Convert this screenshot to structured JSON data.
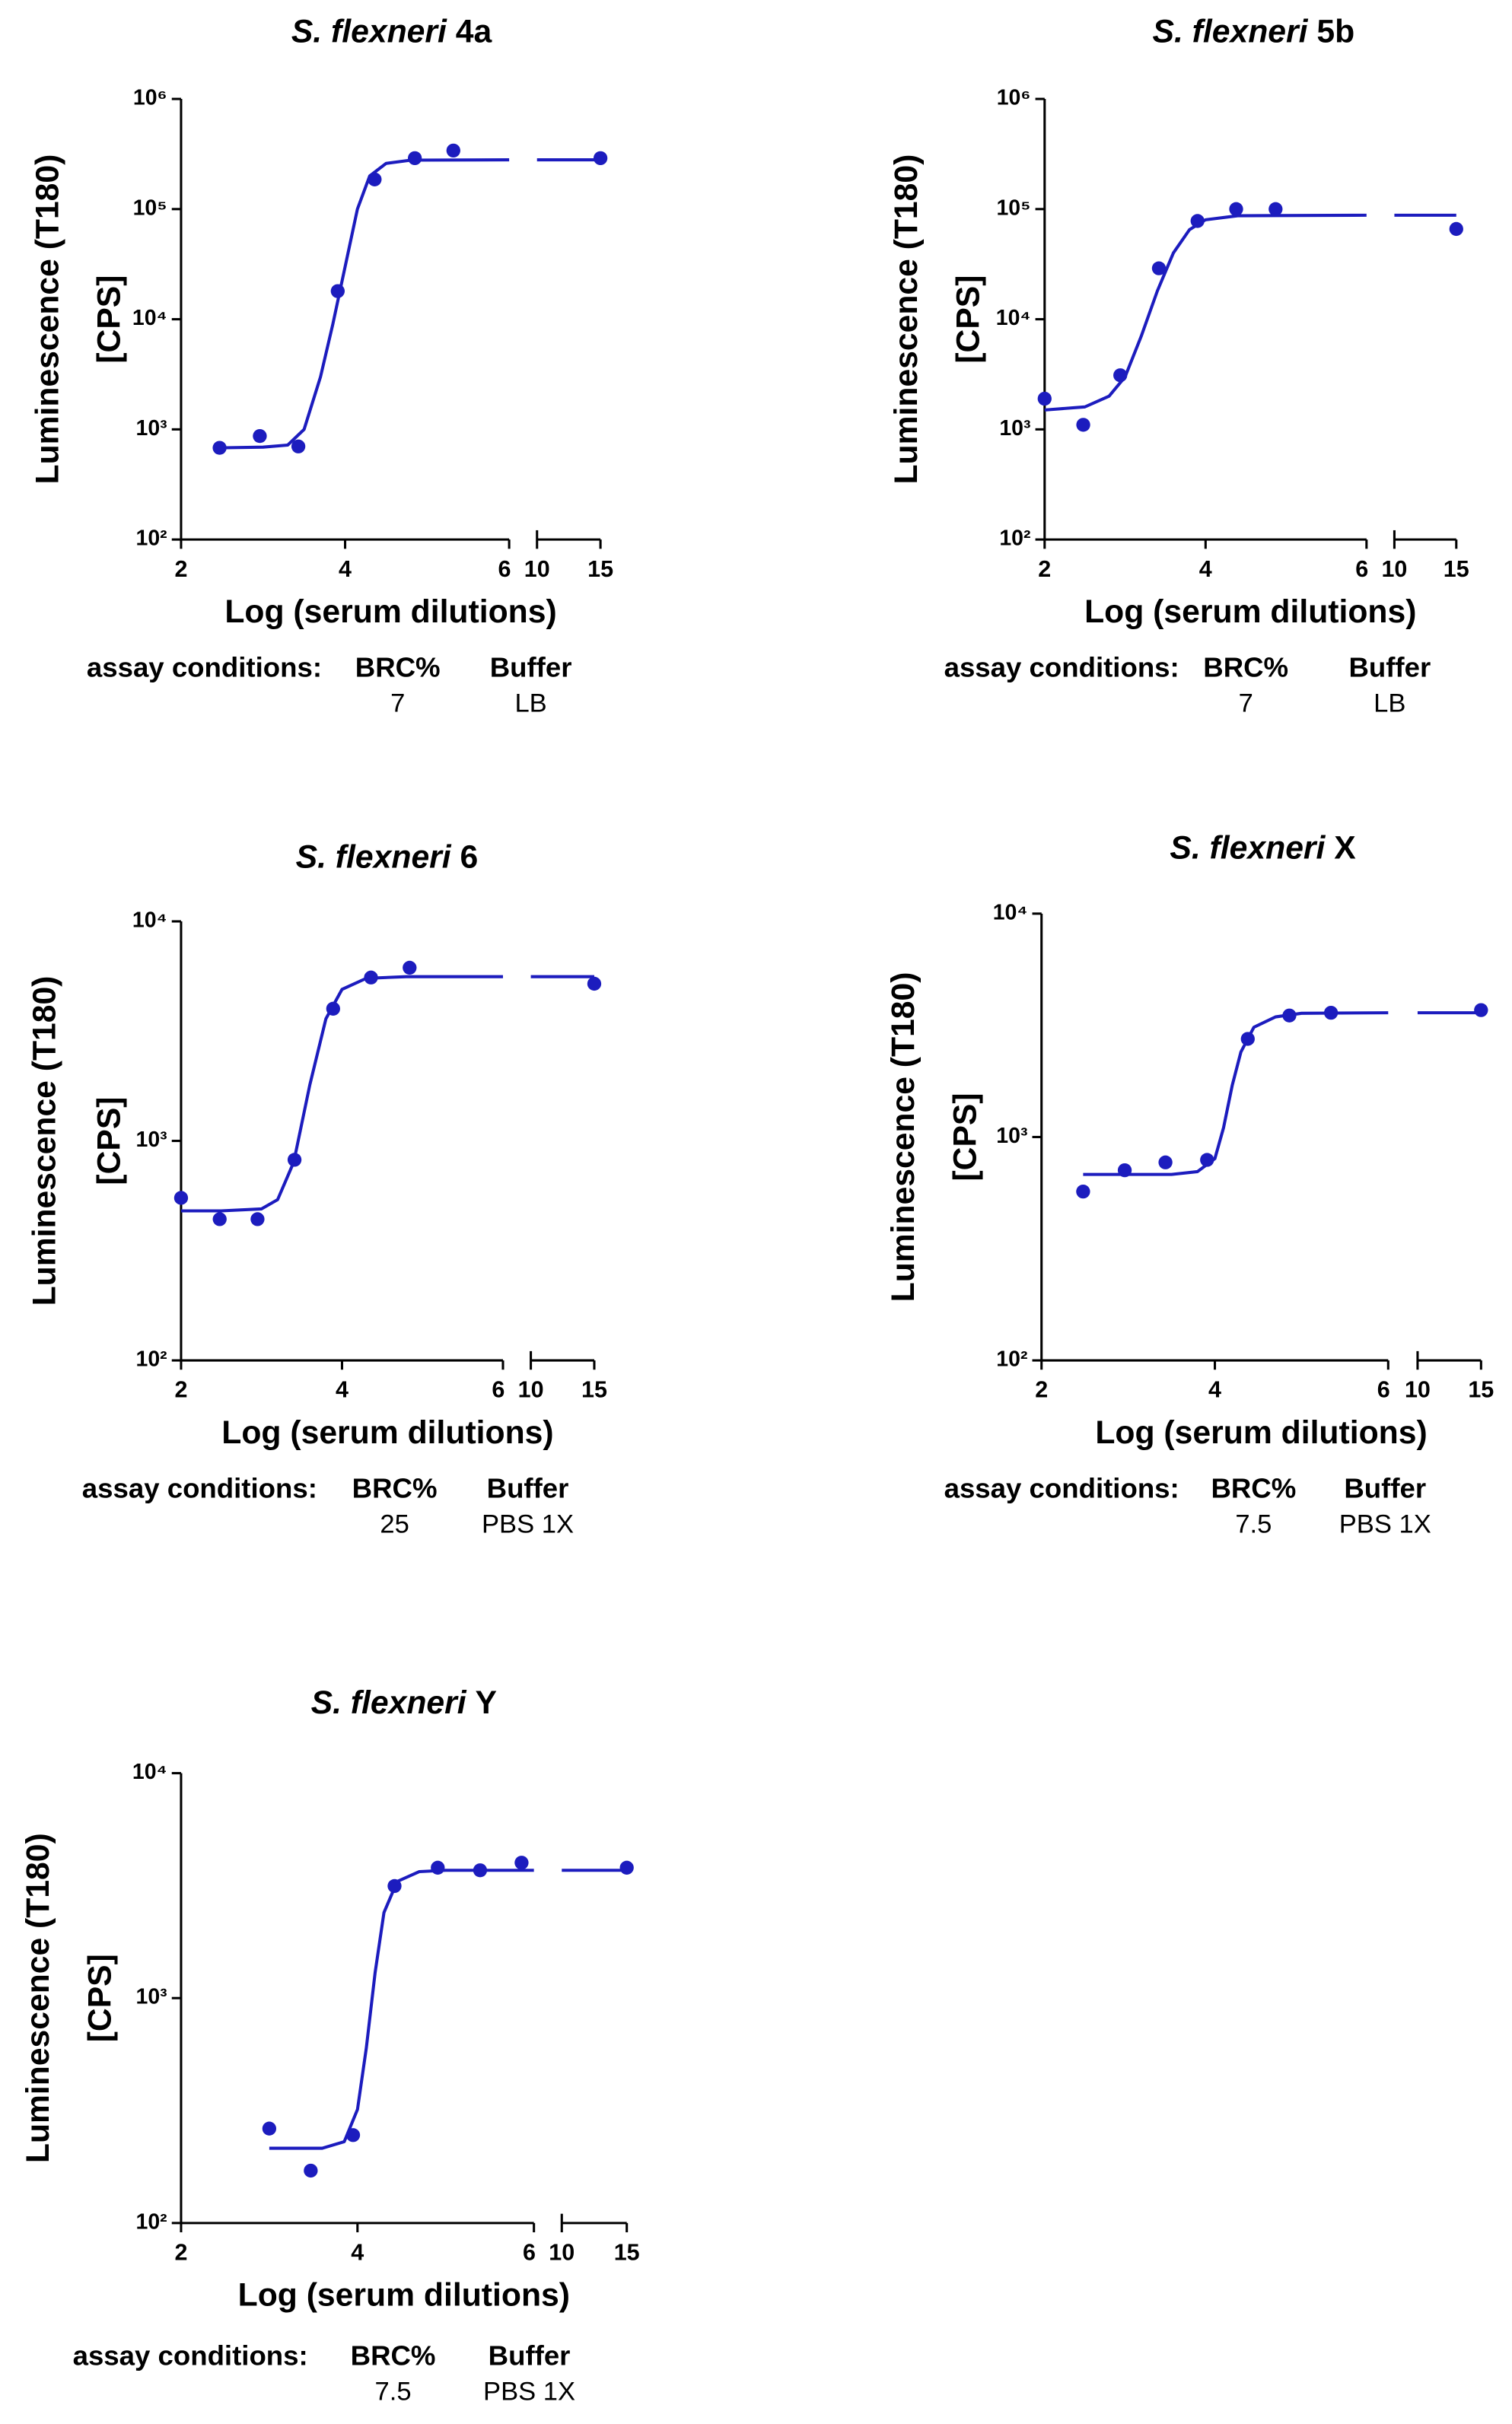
{
  "chart_data": [
    {
      "type": "scatter",
      "organism": "S. flexneri",
      "strain": "4a",
      "ylabel": [
        "Luminescence (T180)",
        "[CPS]"
      ],
      "xlabel": "Log (serum dilutions)",
      "yscale": "log",
      "ylim": [
        100,
        1000000
      ],
      "yticks": [
        {
          "value": 100,
          "label": "10²"
        },
        {
          "value": 1000,
          "label": "10³"
        },
        {
          "value": 10000,
          "label": "10⁴"
        },
        {
          "value": 100000,
          "label": "10⁵"
        },
        {
          "value": 1000000,
          "label": "10⁶"
        }
      ],
      "xsegments": [
        {
          "xlim": [
            2,
            6
          ],
          "xticks": [
            2,
            4,
            6
          ]
        },
        {
          "xlim": [
            10,
            15
          ],
          "xticks": [
            10,
            15
          ]
        }
      ],
      "series": [
        {
          "color": "#1c1cbe",
          "x": [
            2.47,
            2.96,
            3.43,
            3.91,
            4.36,
            4.85,
            5.32,
            15
          ],
          "values": [
            680,
            870,
            700,
            18000,
            186000,
            290000,
            340000,
            290000
          ]
        }
      ],
      "fit": {
        "color": "#1c1cbe",
        "x": [
          2.47,
          3.0,
          3.3,
          3.5,
          3.7,
          3.85,
          4.0,
          4.15,
          4.3,
          4.5,
          4.8,
          6,
          10,
          15
        ],
        "values": [
          680,
          690,
          720,
          1000,
          3000,
          9000,
          30000,
          100000,
          200000,
          260000,
          278000,
          280000,
          280000,
          280000
        ]
      },
      "conditions": {
        "label": "assay conditions:",
        "columns": [
          {
            "name": "BRC%",
            "value": "7"
          },
          {
            "name": "Buffer",
            "value": "LB"
          }
        ]
      }
    },
    {
      "type": "scatter",
      "organism": "S. flexneri",
      "strain": "5b",
      "ylabel": [
        "Luminescence (T180)",
        "[CPS]"
      ],
      "xlabel": "Log (serum dilutions)",
      "yscale": "log",
      "ylim": [
        100,
        1000000
      ],
      "yticks": [
        {
          "value": 100,
          "label": "10²"
        },
        {
          "value": 1000,
          "label": "10³"
        },
        {
          "value": 10000,
          "label": "10⁴"
        },
        {
          "value": 100000,
          "label": "10⁵"
        },
        {
          "value": 1000000,
          "label": "10⁶"
        }
      ],
      "xsegments": [
        {
          "xlim": [
            2,
            6
          ],
          "xticks": [
            2,
            4,
            6
          ]
        },
        {
          "xlim": [
            10,
            15
          ],
          "xticks": [
            10,
            15
          ]
        }
      ],
      "series": [
        {
          "color": "#1c1cbe",
          "x": [
            2.0,
            2.48,
            2.94,
            3.42,
            3.9,
            4.38,
            4.87,
            15
          ],
          "values": [
            1900,
            1100,
            3100,
            29000,
            78000,
            100000,
            100000,
            66000
          ]
        }
      ],
      "fit": {
        "color": "#1c1cbe",
        "x": [
          2.0,
          2.5,
          2.8,
          3.0,
          3.2,
          3.4,
          3.6,
          3.8,
          4.0,
          4.4,
          6,
          10,
          15
        ],
        "values": [
          1500,
          1600,
          2000,
          3000,
          7000,
          18000,
          40000,
          65000,
          80000,
          87000,
          88000,
          88000,
          88000
        ]
      },
      "conditions": {
        "label": "assay conditions:",
        "columns": [
          {
            "name": "BRC%",
            "value": "7"
          },
          {
            "name": "Buffer",
            "value": "LB"
          }
        ]
      }
    },
    {
      "type": "scatter",
      "organism": "S. flexneri",
      "strain": "6",
      "ylabel": [
        "Luminescence (T180)",
        "[CPS]"
      ],
      "xlabel": "Log (serum dilutions)",
      "yscale": "log",
      "ylim": [
        100,
        10000
      ],
      "yticks": [
        {
          "value": 100,
          "label": "10²"
        },
        {
          "value": 1000,
          "label": "10³"
        },
        {
          "value": 10000,
          "label": "10⁴"
        }
      ],
      "xsegments": [
        {
          "xlim": [
            2,
            6
          ],
          "xticks": [
            2,
            4,
            6
          ]
        },
        {
          "xlim": [
            10,
            15
          ],
          "xticks": [
            10,
            15
          ]
        }
      ],
      "series": [
        {
          "color": "#1c1cbe",
          "x": [
            2.0,
            2.48,
            2.95,
            3.41,
            3.89,
            4.36,
            4.84,
            15
          ],
          "values": [
            550,
            440,
            440,
            820,
            4000,
            5550,
            6150,
            5200
          ]
        }
      ],
      "fit": {
        "color": "#1c1cbe",
        "x": [
          2.0,
          2.5,
          3.0,
          3.2,
          3.4,
          3.6,
          3.8,
          4.0,
          4.3,
          4.8,
          6,
          10,
          15
        ],
        "values": [
          480,
          480,
          490,
          540,
          800,
          1800,
          3600,
          4900,
          5500,
          5600,
          5600,
          5600,
          5600
        ]
      },
      "conditions": {
        "label": "assay conditions:",
        "columns": [
          {
            "name": "BRC%",
            "value": "25"
          },
          {
            "name": "Buffer",
            "value": "PBS 1X"
          }
        ]
      }
    },
    {
      "type": "scatter",
      "organism": "S. flexneri",
      "strain": "X",
      "ylabel": [
        "Luminescence (T180)",
        "[CPS]"
      ],
      "xlabel": "Log (serum dilutions)",
      "yscale": "log",
      "ylim": [
        100,
        10000
      ],
      "yticks": [
        {
          "value": 100,
          "label": "10²"
        },
        {
          "value": 1000,
          "label": "10³"
        },
        {
          "value": 10000,
          "label": "10⁴"
        }
      ],
      "xsegments": [
        {
          "xlim": [
            2,
            6
          ],
          "xticks": [
            2,
            4,
            6
          ]
        },
        {
          "xlim": [
            10,
            15
          ],
          "xticks": [
            10,
            15
          ]
        }
      ],
      "series": [
        {
          "color": "#1c1cbe",
          "x": [
            2.48,
            2.96,
            3.43,
            3.91,
            4.38,
            4.86,
            5.34,
            15
          ],
          "values": [
            570,
            710,
            770,
            790,
            2750,
            3500,
            3600,
            3700
          ]
        }
      ],
      "fit": {
        "color": "#1c1cbe",
        "x": [
          2.48,
          3.5,
          3.8,
          4.0,
          4.1,
          4.2,
          4.3,
          4.45,
          4.7,
          5.0,
          6,
          10,
          15
        ],
        "values": [
          680,
          680,
          700,
          800,
          1100,
          1700,
          2400,
          3100,
          3450,
          3580,
          3600,
          3600,
          3600
        ]
      },
      "conditions": {
        "label": "assay conditions:",
        "columns": [
          {
            "name": "BRC%",
            "value": "7.5"
          },
          {
            "name": "Buffer",
            "value": "PBS 1X"
          }
        ]
      }
    },
    {
      "type": "scatter",
      "organism": "S. flexneri",
      "strain": "Y",
      "ylabel": [
        "Luminescence (T180)",
        "[CPS]"
      ],
      "xlabel": "Log (serum dilutions)",
      "yscale": "log",
      "ylim": [
        100,
        10000
      ],
      "yticks": [
        {
          "value": 100,
          "label": "10²"
        },
        {
          "value": 1000,
          "label": "10³"
        },
        {
          "value": 10000,
          "label": "10⁴"
        }
      ],
      "xsegments": [
        {
          "xlim": [
            2,
            6
          ],
          "xticks": [
            2,
            4,
            6
          ]
        },
        {
          "xlim": [
            10,
            15
          ],
          "xticks": [
            10,
            15
          ]
        }
      ],
      "series": [
        {
          "color": "#1c1cbe",
          "x": [
            3.0,
            3.47,
            3.95,
            4.42,
            4.91,
            5.39,
            5.86,
            15
          ],
          "values": [
            263,
            171,
            246,
            3150,
            3800,
            3700,
            4000,
            3800
          ]
        }
      ],
      "fit": {
        "color": "#1c1cbe",
        "x": [
          3.0,
          3.6,
          3.85,
          4.0,
          4.1,
          4.2,
          4.3,
          4.45,
          4.7,
          5.0,
          6,
          10,
          15
        ],
        "values": [
          215,
          215,
          230,
          320,
          600,
          1300,
          2400,
          3300,
          3650,
          3700,
          3700,
          3700,
          3700
        ]
      },
      "conditions": {
        "label": "assay conditions:",
        "columns": [
          {
            "name": "BRC%",
            "value": "7.5"
          },
          {
            "name": "Buffer",
            "value": "PBS 1X"
          }
        ]
      }
    }
  ]
}
